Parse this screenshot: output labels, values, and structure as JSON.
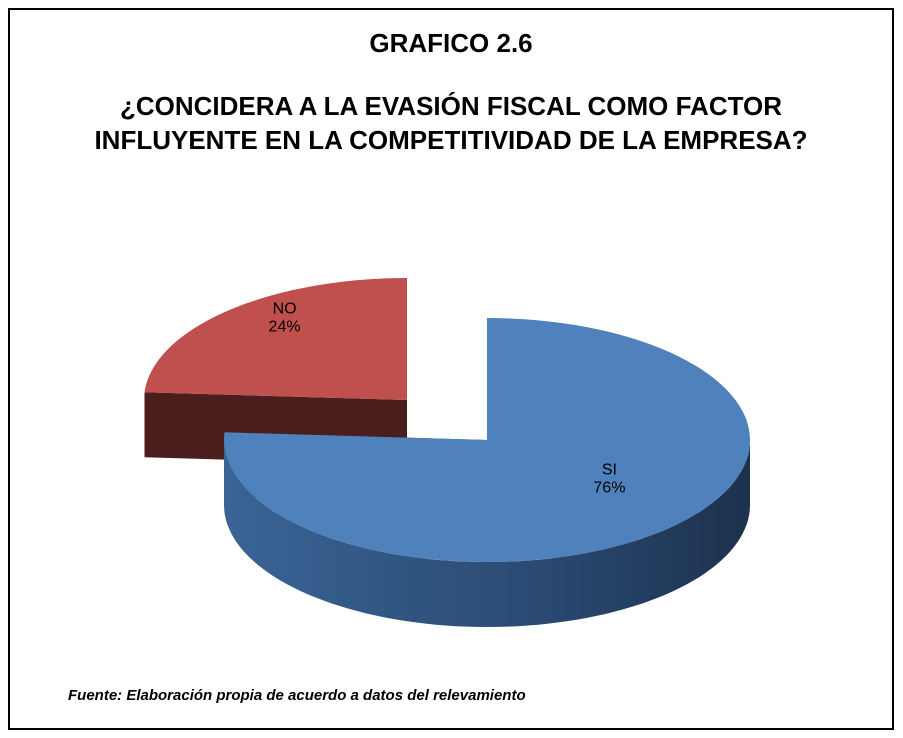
{
  "chart_data": {
    "type": "pie",
    "title": "GRAFICO 2.6",
    "subtitle": [
      "¿CONCIDERA A LA EVASIÓN FISCAL COMO FACTOR",
      "INFLUYENTE EN LA COMPETITIVIDAD DE LA EMPRESA?"
    ],
    "categories": [
      "SI",
      "NO"
    ],
    "values": [
      76,
      24
    ],
    "value_labels": [
      "76%",
      "24%"
    ],
    "colors": [
      "#4f81bd",
      "#c0504d"
    ],
    "source": "Fuente: Elaboración propia de acuerdo a datos del relevamiento"
  }
}
